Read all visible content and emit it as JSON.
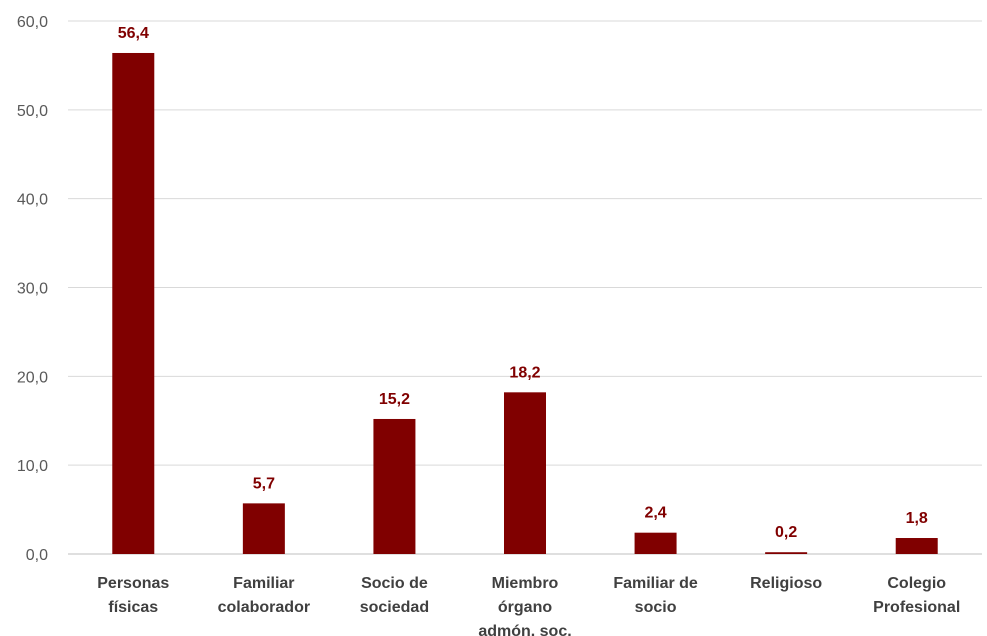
{
  "chart_data": {
    "type": "bar",
    "categories": [
      [
        "Personas",
        "físicas"
      ],
      [
        "Familiar",
        "colaborador"
      ],
      [
        "Socio de",
        "sociedad"
      ],
      [
        "Miembro",
        "órgano",
        "admón. soc."
      ],
      [
        "Familiar de",
        "socio"
      ],
      [
        "Religioso"
      ],
      [
        "Colegio",
        "Profesional"
      ]
    ],
    "values": [
      56.4,
      5.7,
      15.2,
      18.2,
      2.4,
      0.2,
      1.8
    ],
    "value_labels": [
      "56,4",
      "5,7",
      "15,2",
      "18,2",
      "2,4",
      "0,2",
      "1,8"
    ],
    "y_ticks": [
      "0,0",
      "10,0",
      "20,0",
      "30,0",
      "40,0",
      "50,0",
      "60,0"
    ],
    "ylim": [
      0,
      60
    ],
    "title": "",
    "xlabel": "",
    "ylabel": "",
    "grid": true,
    "legend": "none",
    "colors": {
      "bar": "#800000",
      "data_label": "#800000",
      "gridline": "#d9d9d9"
    }
  }
}
